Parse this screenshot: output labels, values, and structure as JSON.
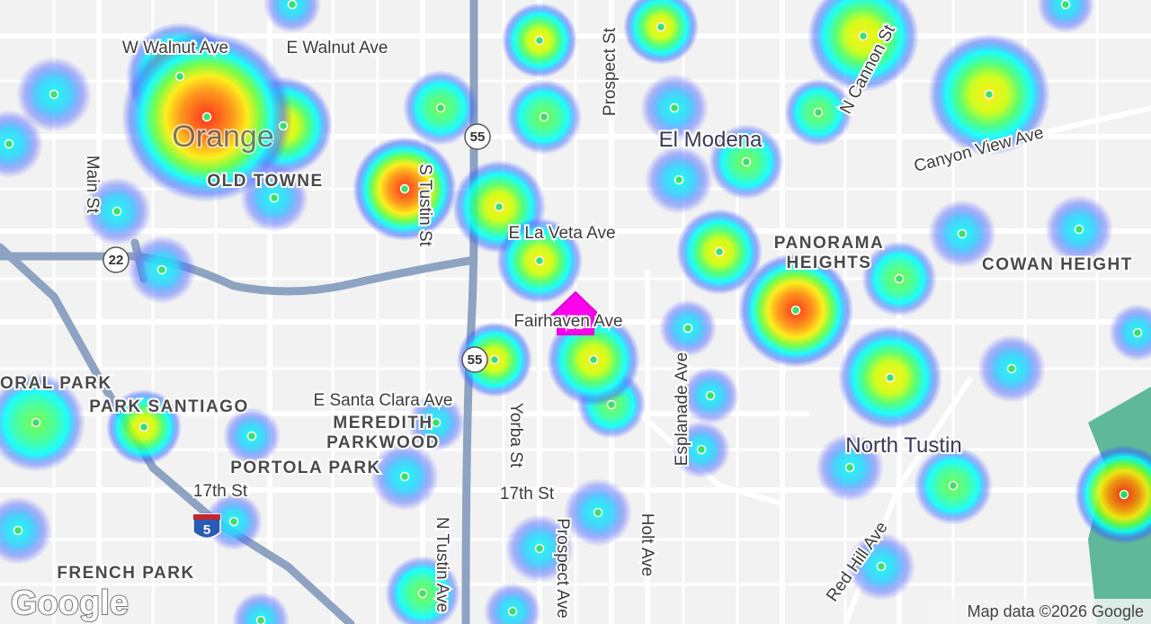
{
  "map": {
    "places": [
      "Orange",
      "El Modena",
      "North Tustin",
      "OLD TOWNE",
      "PANORAMA",
      "HEIGHTS",
      "COWAN HEIGHT",
      "ORAL PARK",
      "PARK SANTIAGO",
      "MEREDITH",
      "PARKWOOD",
      "PORTOLA PARK",
      "FRENCH PARK"
    ],
    "streets": [
      "W Walnut Ave",
      "E Walnut Ave",
      "Prospect St",
      "N Cannon St",
      "Canyon View Ave",
      "Main St",
      "S Tustin St",
      "E La Veta Ave",
      "Fairhaven Ave",
      "E Santa Clara Ave",
      "Yorba St",
      "Esplanade Ave",
      "17th St",
      "17th St",
      "N Tustin Ave",
      "Prospect Ave",
      "Holt Ave",
      "Red Hill Ave"
    ],
    "shields": [
      "55",
      "55",
      "22",
      "5"
    ],
    "logo": "Google",
    "attribution": "Map data ©2026 Google"
  }
}
